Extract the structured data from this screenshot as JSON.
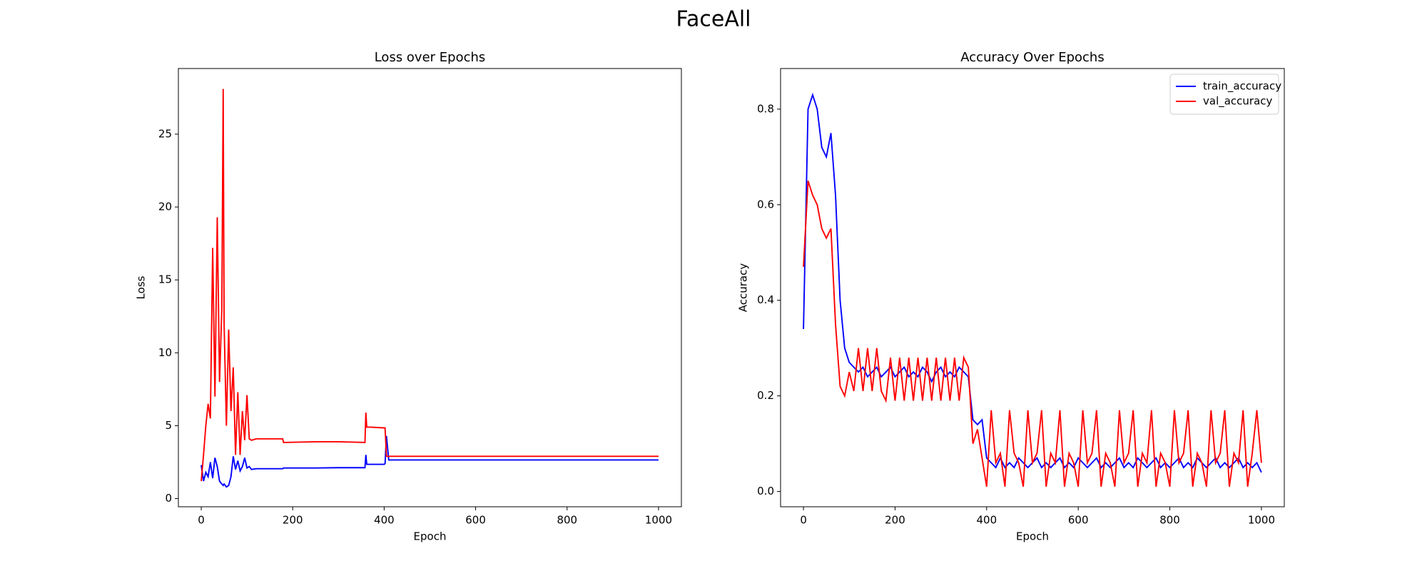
{
  "title": "FaceAll",
  "chart_data": [
    {
      "type": "line",
      "title": "Loss over Epochs",
      "x_label": "Epoch",
      "y_label": "Loss",
      "xlim": [
        -50,
        1050
      ],
      "ylim": [
        -0.56,
        29.5
      ],
      "xticks": [
        0,
        200,
        400,
        600,
        800,
        1000
      ],
      "yticks": [
        0,
        5,
        10,
        15,
        20,
        25
      ],
      "x": [
        0,
        5,
        10,
        15,
        20,
        25,
        30,
        35,
        40,
        45,
        48,
        50,
        55,
        60,
        65,
        70,
        75,
        80,
        85,
        90,
        95,
        100,
        105,
        110,
        120,
        150,
        178,
        180,
        250,
        300,
        358,
        360,
        362,
        370,
        400,
        402,
        405,
        410,
        500,
        600,
        700,
        800,
        900,
        1000
      ],
      "series": [
        {
          "color": "#0000ff",
          "values": [
            2.3,
            1.2,
            1.8,
            1.5,
            2.5,
            1.4,
            2.8,
            2.2,
            1.2,
            1.0,
            0.9,
            1.0,
            0.8,
            0.9,
            1.5,
            2.9,
            2.0,
            2.6,
            1.9,
            2.2,
            2.8,
            2.1,
            2.2,
            2.0,
            2.05,
            2.05,
            2.05,
            2.1,
            2.1,
            2.12,
            2.12,
            3.0,
            2.35,
            2.35,
            2.35,
            2.4,
            4.3,
            2.65,
            2.65,
            2.65,
            2.65,
            2.65,
            2.65,
            2.65
          ]
        },
        {
          "color": "#ff0000",
          "values": [
            1.2,
            3,
            5,
            6.5,
            5.5,
            17.2,
            7,
            19.3,
            8,
            13,
            28.1,
            12,
            5,
            11.6,
            6,
            9,
            3,
            7.3,
            3,
            6,
            4,
            7.1,
            4.1,
            4.0,
            4.1,
            4.1,
            4.1,
            3.85,
            3.9,
            3.9,
            3.85,
            5.9,
            4.9,
            4.9,
            4.85,
            4.85,
            2.9,
            2.9,
            2.9,
            2.9,
            2.9,
            2.9,
            2.9,
            2.9
          ]
        }
      ]
    },
    {
      "type": "line",
      "title": "Accuracy Over Epochs",
      "x_label": "Epoch",
      "y_label": "Accuracy",
      "xlim": [
        -50,
        1050
      ],
      "ylim": [
        -0.032,
        0.885
      ],
      "xticks": [
        0,
        200,
        400,
        600,
        800,
        1000
      ],
      "yticks": [
        {
          "value": 0,
          "label": "0.0"
        },
        0.2,
        0.4,
        0.6,
        0.8
      ],
      "legend": "upper right",
      "x": [
        0,
        10,
        20,
        30,
        40,
        50,
        60,
        70,
        80,
        90,
        100,
        110,
        120,
        130,
        140,
        150,
        160,
        170,
        180,
        190,
        200,
        210,
        220,
        230,
        240,
        250,
        260,
        270,
        280,
        290,
        300,
        310,
        320,
        330,
        340,
        350,
        360,
        370,
        380,
        390,
        400,
        410,
        420,
        430,
        440,
        450,
        460,
        470,
        480,
        490,
        500,
        510,
        520,
        530,
        540,
        550,
        560,
        570,
        580,
        590,
        600,
        610,
        620,
        630,
        640,
        650,
        660,
        670,
        680,
        690,
        700,
        710,
        720,
        730,
        740,
        750,
        760,
        770,
        780,
        790,
        800,
        810,
        820,
        830,
        840,
        850,
        860,
        870,
        880,
        890,
        900,
        910,
        920,
        930,
        940,
        950,
        960,
        970,
        980,
        990,
        1000
      ],
      "series": [
        {
          "name": "train_accuracy",
          "color": "#0000ff",
          "values": [
            0.34,
            0.8,
            0.83,
            0.8,
            0.72,
            0.7,
            0.75,
            0.62,
            0.4,
            0.3,
            0.27,
            0.26,
            0.25,
            0.26,
            0.24,
            0.25,
            0.26,
            0.24,
            0.25,
            0.26,
            0.24,
            0.25,
            0.26,
            0.24,
            0.25,
            0.24,
            0.26,
            0.25,
            0.23,
            0.25,
            0.26,
            0.24,
            0.25,
            0.24,
            0.26,
            0.25,
            0.24,
            0.15,
            0.14,
            0.15,
            0.07,
            0.06,
            0.05,
            0.07,
            0.05,
            0.06,
            0.05,
            0.07,
            0.06,
            0.05,
            0.06,
            0.07,
            0.05,
            0.06,
            0.05,
            0.06,
            0.07,
            0.05,
            0.06,
            0.05,
            0.07,
            0.06,
            0.05,
            0.06,
            0.07,
            0.05,
            0.06,
            0.05,
            0.06,
            0.07,
            0.05,
            0.06,
            0.05,
            0.07,
            0.06,
            0.05,
            0.06,
            0.07,
            0.05,
            0.06,
            0.05,
            0.06,
            0.07,
            0.05,
            0.06,
            0.05,
            0.07,
            0.06,
            0.05,
            0.06,
            0.07,
            0.05,
            0.06,
            0.05,
            0.06,
            0.07,
            0.05,
            0.06,
            0.05,
            0.06,
            0.04
          ]
        },
        {
          "name": "val_accuracy",
          "color": "#ff0000",
          "values": [
            0.47,
            0.65,
            0.62,
            0.6,
            0.55,
            0.53,
            0.55,
            0.35,
            0.22,
            0.2,
            0.25,
            0.21,
            0.3,
            0.21,
            0.3,
            0.21,
            0.3,
            0.21,
            0.19,
            0.28,
            0.19,
            0.28,
            0.19,
            0.28,
            0.19,
            0.28,
            0.19,
            0.28,
            0.19,
            0.28,
            0.19,
            0.28,
            0.19,
            0.28,
            0.19,
            0.28,
            0.26,
            0.1,
            0.13,
            0.07,
            0.01,
            0.17,
            0.06,
            0.08,
            0.01,
            0.17,
            0.08,
            0.06,
            0.01,
            0.17,
            0.06,
            0.08,
            0.17,
            0.01,
            0.08,
            0.06,
            0.17,
            0.01,
            0.08,
            0.06,
            0.01,
            0.17,
            0.06,
            0.08,
            0.17,
            0.01,
            0.08,
            0.06,
            0.01,
            0.17,
            0.06,
            0.08,
            0.17,
            0.01,
            0.08,
            0.06,
            0.17,
            0.01,
            0.08,
            0.06,
            0.01,
            0.17,
            0.06,
            0.08,
            0.17,
            0.01,
            0.08,
            0.06,
            0.01,
            0.17,
            0.06,
            0.08,
            0.17,
            0.01,
            0.08,
            0.06,
            0.17,
            0.01,
            0.08,
            0.17,
            0.06
          ]
        }
      ]
    }
  ]
}
